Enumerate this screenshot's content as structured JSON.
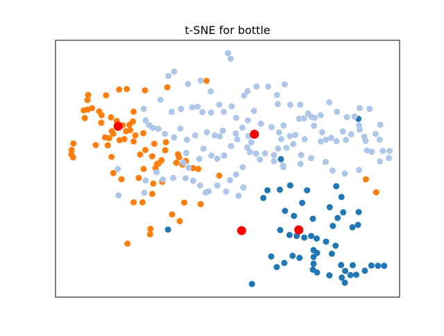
{
  "chart_data": {
    "type": "scatter",
    "title": "t-SNE for bottle",
    "xlabel": "",
    "ylabel": "",
    "xlim": [
      0,
      100
    ],
    "ylim": [
      0,
      100
    ],
    "grid": false,
    "axis_ticks": false,
    "series": [
      {
        "color": "#1f77b4",
        "points": [
          [
            88,
            69.4
          ],
          [
            65.5,
            53.7
          ],
          [
            61.6,
            41.6
          ],
          [
            60.4,
            38.6
          ],
          [
            65.2,
            41.8
          ],
          [
            68.2,
            43.5
          ],
          [
            73.1,
            41.6
          ],
          [
            81.6,
            43.2
          ],
          [
            83.1,
            39
          ],
          [
            66.7,
            33.6
          ],
          [
            69.3,
            31.6
          ],
          [
            74.8,
            30.5
          ],
          [
            71.7,
            36.7
          ],
          [
            74.3,
            23.8
          ],
          [
            79.7,
            35
          ],
          [
            80.6,
            27.7
          ],
          [
            82,
            30.8
          ],
          [
            83.6,
            33
          ],
          [
            86.3,
            27.2
          ],
          [
            87.9,
            28.1
          ],
          [
            88.1,
            33.1
          ],
          [
            65.3,
            26.1
          ],
          [
            68,
            24.2
          ],
          [
            70.1,
            23.8
          ],
          [
            72.3,
            23.2
          ],
          [
            75.9,
            22.8
          ],
          [
            78.6,
            21.6
          ],
          [
            81.4,
            20
          ],
          [
            75,
            18.3
          ],
          [
            75,
            15.6
          ],
          [
            76,
            17.2
          ],
          [
            62.7,
            15.8
          ],
          [
            64.3,
            11.7
          ],
          [
            66.5,
            13.3
          ],
          [
            68.9,
            16.1
          ],
          [
            70.9,
            15.3
          ],
          [
            75,
            13
          ],
          [
            74.8,
            10.7
          ],
          [
            76,
            9.6
          ],
          [
            80.3,
            16.9
          ],
          [
            79.6,
            8.5
          ],
          [
            83,
            12.5
          ],
          [
            84.2,
            10.2
          ],
          [
            86.4,
            12.4
          ],
          [
            83.2,
            7.6
          ],
          [
            85.7,
            8.6
          ],
          [
            87.4,
            8.7
          ],
          [
            89.9,
            10.3
          ],
          [
            91.8,
            12.3
          ],
          [
            93.7,
            12.2
          ],
          [
            95.5,
            12.2
          ],
          [
            84.1,
            5.6
          ],
          [
            57.1,
            5.1
          ],
          [
            32.7,
            26.3
          ]
        ]
      },
      {
        "color": "#ff7f0e",
        "points": [
          [
            43.9,
            84.2
          ],
          [
            32.5,
            81.7
          ],
          [
            26,
            80.5
          ],
          [
            20.7,
            81
          ],
          [
            18.5,
            80.8
          ],
          [
            14.7,
            78.6
          ],
          [
            9.5,
            78.7
          ],
          [
            9.3,
            76.7
          ],
          [
            8.2,
            72.7
          ],
          [
            8.5,
            69.7
          ],
          [
            10.6,
            73.6
          ],
          [
            9.4,
            73
          ],
          [
            12.7,
            72.3
          ],
          [
            13.4,
            70.8
          ],
          [
            13.3,
            67.9
          ],
          [
            16.1,
            70
          ],
          [
            17.8,
            68.6
          ],
          [
            19.5,
            66.9
          ],
          [
            21.5,
            67.1
          ],
          [
            22.7,
            72.2
          ],
          [
            22.5,
            68.4
          ],
          [
            16.4,
            64.6
          ],
          [
            15.6,
            61.9
          ],
          [
            20,
            61.5
          ],
          [
            22.7,
            60.6
          ],
          [
            23.2,
            63
          ],
          [
            25.5,
            63.8
          ],
          [
            21.7,
            65
          ],
          [
            15.2,
            59.1
          ],
          [
            24.6,
            55.5
          ],
          [
            28.1,
            54.8
          ],
          [
            28.7,
            59.7
          ],
          [
            31.9,
            57.2
          ],
          [
            32.1,
            60.3
          ],
          [
            30.8,
            53.3
          ],
          [
            30,
            52.1
          ],
          [
            29.5,
            51.8
          ],
          [
            29.1,
            50.2
          ],
          [
            20.5,
            64.6
          ],
          [
            18.6,
            61.1
          ],
          [
            16.8,
            63.6
          ],
          [
            14.4,
            62.2
          ],
          [
            26.1,
            57.3
          ],
          [
            25.6,
            49.9
          ],
          [
            36.9,
            51.6
          ],
          [
            37.9,
            53
          ],
          [
            41.5,
            49.9
          ],
          [
            40,
            50.2
          ],
          [
            47.6,
            47.3
          ],
          [
            90.2,
            45.9
          ],
          [
            93.2,
            40.8
          ],
          [
            35.6,
            55.6
          ],
          [
            35.1,
            52.3
          ],
          [
            35.9,
            54.4
          ],
          [
            5.2,
            59.8
          ],
          [
            4.7,
            57.3
          ],
          [
            4.6,
            55.6
          ],
          [
            5.1,
            54.4
          ],
          [
            11.7,
            59.2
          ],
          [
            16.3,
            54.6
          ],
          [
            16.8,
            48.3
          ],
          [
            19.2,
            45.9
          ],
          [
            24.2,
            46.4
          ],
          [
            28.4,
            44.2
          ],
          [
            31,
            44.9
          ],
          [
            28.1,
            40.2
          ],
          [
            25.3,
            36.9
          ],
          [
            22.7,
            36.9
          ],
          [
            33.9,
            32.2
          ],
          [
            37.4,
            36.8
          ],
          [
            42.2,
            36.2
          ],
          [
            36.1,
            29.6
          ],
          [
            27.6,
            26.6
          ],
          [
            27.5,
            24.5
          ],
          [
            20.9,
            20.8
          ]
        ]
      },
      {
        "color": "#aec7e8",
        "points": [
          [
            50.1,
            95
          ],
          [
            50.9,
            92.8
          ],
          [
            34.5,
            87.8
          ],
          [
            32.8,
            86.1
          ],
          [
            38.5,
            83
          ],
          [
            42.2,
            84.3
          ],
          [
            45.1,
            80.1
          ],
          [
            54.8,
            78.4
          ],
          [
            55.8,
            80.2
          ],
          [
            58.4,
            82
          ],
          [
            61.8,
            82
          ],
          [
            66.6,
            82.8
          ],
          [
            64.4,
            78.7
          ],
          [
            64.6,
            75.2
          ],
          [
            68.2,
            74.9
          ],
          [
            71.1,
            74.9
          ],
          [
            73.4,
            71.5
          ],
          [
            75.3,
            69.8
          ],
          [
            77.1,
            70.8
          ],
          [
            79.6,
            75.8
          ],
          [
            81.8,
            72.2
          ],
          [
            84.7,
            70.1
          ],
          [
            86.9,
            70.3
          ],
          [
            88.4,
            73.6
          ],
          [
            91.3,
            73.3
          ],
          [
            94.4,
            67.1
          ],
          [
            93,
            63.5
          ],
          [
            89.7,
            62.5
          ],
          [
            88.4,
            65.2
          ],
          [
            84.4,
            61.2
          ],
          [
            81.7,
            60.7
          ],
          [
            77.1,
            60.6
          ],
          [
            72.4,
            61.5
          ],
          [
            69.1,
            59.6
          ],
          [
            65.6,
            61.5
          ],
          [
            64.7,
            57.8
          ],
          [
            67.1,
            58.1
          ],
          [
            63.5,
            55.3
          ],
          [
            56.9,
            60.3
          ],
          [
            56.1,
            62.7
          ],
          [
            52.8,
            61.4
          ],
          [
            52.4,
            63.7
          ],
          [
            47.7,
            62.6
          ],
          [
            48.6,
            64.8
          ],
          [
            46.3,
            63
          ],
          [
            44,
            64.2
          ],
          [
            40.6,
            63
          ],
          [
            38.2,
            61.3
          ],
          [
            36.3,
            65.6
          ],
          [
            34.5,
            62.2
          ],
          [
            31.8,
            63.6
          ],
          [
            29.9,
            65.5
          ],
          [
            28.3,
            65.9
          ],
          [
            27.2,
            67
          ],
          [
            26.2,
            68.8
          ],
          [
            25.6,
            73.3
          ],
          [
            30.5,
            76.8
          ],
          [
            33.8,
            72.1
          ],
          [
            36.5,
            73.3
          ],
          [
            39.7,
            73.9
          ],
          [
            41.3,
            74.1
          ],
          [
            42.7,
            72
          ],
          [
            45.2,
            71.9
          ],
          [
            47.6,
            74.9
          ],
          [
            48.9,
            72.2
          ],
          [
            51.2,
            74.3
          ],
          [
            52.5,
            69.8
          ],
          [
            54.3,
            66
          ],
          [
            55.9,
            68.8
          ],
          [
            57.7,
            72.5
          ],
          [
            59.7,
            67.5
          ],
          [
            62.8,
            66.2
          ],
          [
            65,
            64.1
          ],
          [
            66.3,
            66.8
          ],
          [
            68.1,
            62.7
          ],
          [
            69.7,
            63.1
          ],
          [
            70.8,
            69.5
          ],
          [
            72.2,
            69.6
          ],
          [
            74.4,
            70.2
          ],
          [
            75.1,
            66.7
          ],
          [
            77.5,
            64.2
          ],
          [
            78.6,
            61.3
          ],
          [
            80.1,
            62
          ],
          [
            83.5,
            64.5
          ],
          [
            85.9,
            63.4
          ],
          [
            88.2,
            66.9
          ],
          [
            90.1,
            60.8
          ],
          [
            90.5,
            57.1
          ],
          [
            94.2,
            61.3
          ],
          [
            95.1,
            56.9
          ],
          [
            94.3,
            52.8
          ],
          [
            96.9,
            54.1
          ],
          [
            97.1,
            56.9
          ],
          [
            91.9,
            56.6
          ],
          [
            88.2,
            49.5
          ],
          [
            84.1,
            48.1
          ],
          [
            80.5,
            49.3
          ],
          [
            78.5,
            52.6
          ],
          [
            74.3,
            54.1
          ],
          [
            71.4,
            55.3
          ],
          [
            71.2,
            51.9
          ],
          [
            66.2,
            50.6
          ],
          [
            59.4,
            53.6
          ],
          [
            54.4,
            50.6
          ],
          [
            52.5,
            47.7
          ],
          [
            50.7,
            45.5
          ],
          [
            54.6,
            42.7
          ],
          [
            53.2,
            39.5
          ],
          [
            49.6,
            41.1
          ],
          [
            47,
            43.5
          ],
          [
            44.5,
            41.2
          ],
          [
            43.6,
            40.7
          ],
          [
            42,
            43.5
          ],
          [
            40,
            45.3
          ],
          [
            37.8,
            46.3
          ],
          [
            34.2,
            46.4
          ],
          [
            31.2,
            45.8
          ],
          [
            29.4,
            48.6
          ],
          [
            26.2,
            45.4
          ],
          [
            25.8,
            40.6
          ],
          [
            18.1,
            49.9
          ],
          [
            18.3,
            39.6
          ],
          [
            43,
            57.8
          ],
          [
            41.8,
            53.8
          ],
          [
            45.3,
            55.1
          ],
          [
            47,
            53.9
          ],
          [
            49,
            55.1
          ],
          [
            51,
            58.8
          ],
          [
            55.7,
            58.3
          ],
          [
            56.5,
            56.5
          ],
          [
            58.3,
            55.9
          ],
          [
            60.9,
            56
          ],
          [
            63.5,
            52.9
          ],
          [
            66.1,
            51.3
          ],
          [
            38.7,
            50.4
          ],
          [
            37.2,
            52.3
          ],
          [
            38,
            56.1
          ]
        ]
      }
    ],
    "centroids": {
      "color": "#ff0000",
      "points": [
        [
          18.2,
          66.5
        ],
        [
          57.8,
          63.4
        ],
        [
          54.1,
          25.9
        ],
        [
          70.7,
          26.2
        ]
      ]
    }
  }
}
